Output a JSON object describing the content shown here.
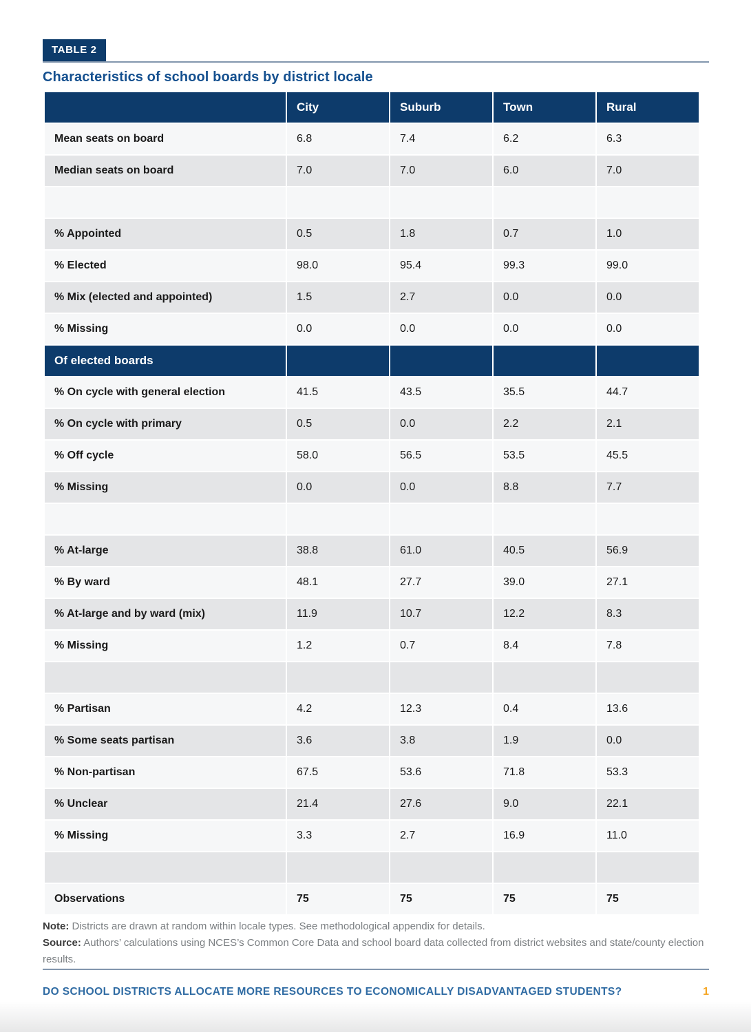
{
  "header": {
    "table_tag": "TABLE 2",
    "title": "Characteristics of school boards by district locale"
  },
  "table": {
    "columns": [
      "City",
      "Suburb",
      "Town",
      "Rural"
    ],
    "rows": [
      {
        "type": "data",
        "label": "Mean seats on board",
        "values": [
          "6.8",
          "7.4",
          "6.2",
          "6.3"
        ]
      },
      {
        "type": "data",
        "label": "Median seats on board",
        "values": [
          "7.0",
          "7.0",
          "6.0",
          "7.0"
        ]
      },
      {
        "type": "spacer"
      },
      {
        "type": "data",
        "label": "% Appointed",
        "values": [
          "0.5",
          "1.8",
          "0.7",
          "1.0"
        ]
      },
      {
        "type": "data",
        "label": "% Elected",
        "values": [
          "98.0",
          "95.4",
          "99.3",
          "99.0"
        ]
      },
      {
        "type": "data",
        "label": "% Mix (elected and appointed)",
        "values": [
          "1.5",
          "2.7",
          "0.0",
          "0.0"
        ]
      },
      {
        "type": "data",
        "label": "% Missing",
        "values": [
          "0.0",
          "0.0",
          "0.0",
          "0.0"
        ]
      },
      {
        "type": "section",
        "label": "Of elected boards"
      },
      {
        "type": "data",
        "label": "% On cycle with general election",
        "values": [
          "41.5",
          "43.5",
          "35.5",
          "44.7"
        ]
      },
      {
        "type": "data",
        "label": "% On cycle with primary",
        "values": [
          "0.5",
          "0.0",
          "2.2",
          "2.1"
        ]
      },
      {
        "type": "data",
        "label": "% Off cycle",
        "values": [
          "58.0",
          "56.5",
          "53.5",
          "45.5"
        ]
      },
      {
        "type": "data",
        "label": "% Missing",
        "values": [
          "0.0",
          "0.0",
          "8.8",
          "7.7"
        ]
      },
      {
        "type": "spacer"
      },
      {
        "type": "data",
        "label": "% At-large",
        "values": [
          "38.8",
          "61.0",
          "40.5",
          "56.9"
        ]
      },
      {
        "type": "data",
        "label": "% By ward",
        "values": [
          "48.1",
          "27.7",
          "39.0",
          "27.1"
        ]
      },
      {
        "type": "data",
        "label": "% At-large and by ward (mix)",
        "values": [
          "11.9",
          "10.7",
          "12.2",
          "8.3"
        ]
      },
      {
        "type": "data",
        "label": "% Missing",
        "values": [
          "1.2",
          "0.7",
          "8.4",
          "7.8"
        ]
      },
      {
        "type": "spacer"
      },
      {
        "type": "data",
        "label": "% Partisan",
        "values": [
          "4.2",
          "12.3",
          "0.4",
          "13.6"
        ]
      },
      {
        "type": "data",
        "label": "% Some seats partisan",
        "values": [
          "3.6",
          "3.8",
          "1.9",
          "0.0"
        ]
      },
      {
        "type": "data",
        "label": "% Non-partisan",
        "values": [
          "67.5",
          "53.6",
          "71.8",
          "53.3"
        ]
      },
      {
        "type": "data",
        "label": "% Unclear",
        "values": [
          "21.4",
          "27.6",
          "9.0",
          "22.1"
        ]
      },
      {
        "type": "data",
        "label": "% Missing",
        "values": [
          "3.3",
          "2.7",
          "16.9",
          "11.0"
        ]
      },
      {
        "type": "spacer"
      },
      {
        "type": "data",
        "label": "Observations",
        "values": [
          "75",
          "75",
          "75",
          "75"
        ],
        "bold": true
      }
    ]
  },
  "notes": [
    {
      "prefix": "Note:",
      "text": " Districts are drawn at random within locale types. See methodological appendix for details."
    },
    {
      "prefix": "Source:",
      "text": " Authors’ calculations using NCES’s Common Core Data and school board data collected from district websites and state/county election results."
    }
  ],
  "footer": {
    "running_title": "DO SCHOOL DISTRICTS ALLOCATE MORE RESOURCES TO ECONOMICALLY DISADVANTAGED STUDENTS?",
    "page_number": "1"
  },
  "colors": {
    "navy": "#0d3b6b",
    "title_blue": "#15508f",
    "row_light": "#f6f7f8",
    "row_gray": "#e4e5e7",
    "rule": "#8296ad",
    "note_gray": "#7b7f82",
    "footer_blue": "#2f6ba3",
    "page_number_orange": "#f5a623"
  }
}
